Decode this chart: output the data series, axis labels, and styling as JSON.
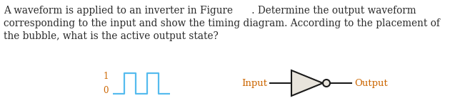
{
  "text_lines": [
    "A waveform is applied to an inverter in Figure      . Determine the output waveform",
    "corresponding to the input and show the timing diagram. According to the placement of",
    "the bubble, what is the active output state?"
  ],
  "text_color": "#2a2a2a",
  "text_fontsize": 9.8,
  "waveform_color": "#55BBEE",
  "waveform_x": [
    0,
    0,
    1,
    1,
    2,
    2,
    3,
    3,
    4,
    4,
    5
  ],
  "waveform_y": [
    0,
    0,
    0,
    1,
    1,
    0,
    0,
    1,
    1,
    0,
    0
  ],
  "label_1": "1",
  "label_0": "0",
  "label_input": "Input",
  "label_output": "Output",
  "io_label_color": "#CC6600",
  "background_color": "#ffffff",
  "triangle_fill": "#e8e4dc"
}
